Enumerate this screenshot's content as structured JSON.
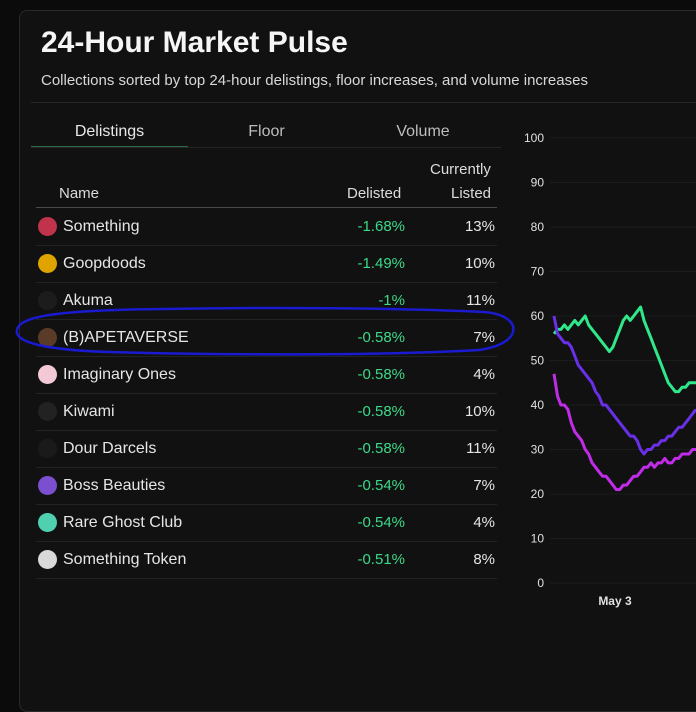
{
  "header": {
    "title": "24-Hour Market Pulse",
    "subtitle": "Collections sorted by top 24-hour delistings, floor increases, and volume increases"
  },
  "tabs": [
    {
      "label": "Delistings",
      "active": true
    },
    {
      "label": "Floor",
      "active": false
    },
    {
      "label": "Volume",
      "active": false
    }
  ],
  "table": {
    "headers": {
      "name": "Name",
      "delisted": "Delisted",
      "listed_line1": "Currently",
      "listed_line2": "Listed"
    },
    "rows": [
      {
        "name": "Something",
        "delisted": "-1.68%",
        "listed": "13%",
        "avatar": "#c0334a"
      },
      {
        "name": "Goopdoods",
        "delisted": "-1.49%",
        "listed": "10%",
        "avatar": "#e0a400"
      },
      {
        "name": "Akuma",
        "delisted": "-1%",
        "listed": "11%",
        "avatar": "#1c1c1c"
      },
      {
        "name": "(B)APETAVERSE",
        "delisted": "-0.58%",
        "listed": "7%",
        "avatar": "#5a3b28"
      },
      {
        "name": "Imaginary Ones",
        "delisted": "-0.58%",
        "listed": "4%",
        "avatar": "#f3c9d6"
      },
      {
        "name": "Kiwami",
        "delisted": "-0.58%",
        "listed": "10%",
        "avatar": "#222222"
      },
      {
        "name": "Dour Darcels",
        "delisted": "-0.58%",
        "listed": "11%",
        "avatar": "#1a1a1a"
      },
      {
        "name": "Boss Beauties",
        "delisted": "-0.54%",
        "listed": "7%",
        "avatar": "#7a4fd0"
      },
      {
        "name": "Rare Ghost Club",
        "delisted": "-0.54%",
        "listed": "4%",
        "avatar": "#4fd1b0"
      },
      {
        "name": "Something Token",
        "delisted": "-0.51%",
        "listed": "8%",
        "avatar": "#d9d9d9"
      }
    ]
  },
  "annotation": {
    "highlighted_row": "(B)APETAVERSE",
    "color": "#1a1ad0"
  },
  "colors": {
    "positive": "#3cd98a",
    "accent_tab": "#2f6b4a"
  },
  "chart_data": {
    "type": "line",
    "yticks": [
      "100",
      "90",
      "80",
      "70",
      "60",
      "50",
      "40",
      "30",
      "20",
      "10",
      "0"
    ],
    "ylim": [
      0,
      100
    ],
    "xticks": [
      "May 3"
    ],
    "x": [
      0,
      2,
      4,
      6,
      8,
      10,
      12,
      14,
      16,
      18,
      20,
      22,
      24,
      26,
      28,
      30,
      32,
      34,
      36,
      38,
      40,
      42,
      44,
      46,
      48,
      50,
      52,
      54,
      56,
      58,
      60,
      62,
      64,
      66,
      68,
      70,
      72,
      74,
      76,
      78,
      80,
      82
    ],
    "series": [
      {
        "color": "#2ee88a",
        "values": [
          56,
          57,
          57,
          58,
          57,
          58,
          59,
          58,
          59,
          60,
          58,
          57,
          56,
          55,
          54,
          53,
          52,
          53,
          55,
          57,
          59,
          60,
          59,
          60,
          61,
          62,
          59,
          57,
          55,
          53,
          51,
          49,
          47,
          45,
          44,
          43,
          43,
          44,
          44,
          45,
          45,
          45
        ]
      },
      {
        "color": "#6a2fe8",
        "values": [
          60,
          56,
          55,
          54,
          54,
          53,
          51,
          49,
          48,
          47,
          46,
          45,
          43,
          42,
          40,
          40,
          39,
          38,
          37,
          36,
          35,
          34,
          33,
          33,
          32,
          30,
          29,
          30,
          30,
          31,
          31,
          32,
          32,
          33,
          33,
          34,
          35,
          35,
          36,
          37,
          38,
          39
        ]
      },
      {
        "color": "#c02ce8",
        "values": [
          47,
          42,
          40,
          40,
          39,
          36,
          34,
          33,
          32,
          30,
          29,
          27,
          26,
          25,
          24,
          24,
          23,
          22,
          21,
          21,
          22,
          22,
          23,
          24,
          24,
          25,
          26,
          26,
          27,
          26,
          27,
          27,
          28,
          27,
          27,
          28,
          28,
          29,
          29,
          29,
          30,
          30
        ]
      }
    ]
  }
}
